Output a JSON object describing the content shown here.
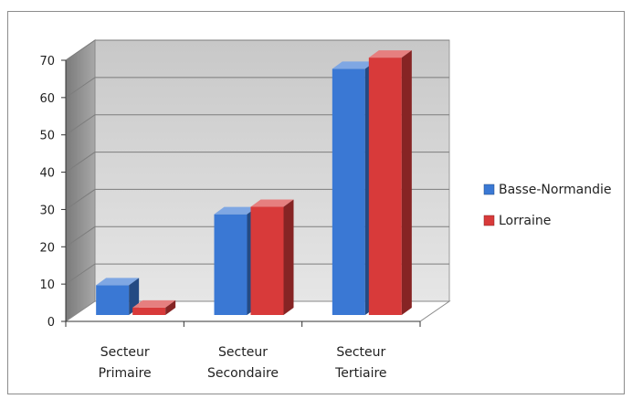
{
  "chart_data": {
    "type": "bar",
    "style": "3d-clustered-column",
    "title": "",
    "xlabel": "",
    "ylabel": "",
    "categories": [
      [
        "Secteur",
        "Primaire"
      ],
      [
        "Secteur",
        "Secondaire"
      ],
      [
        "Secteur",
        "Tertiaire"
      ]
    ],
    "series": [
      {
        "name": "Basse-Normandie",
        "color": "#3a78d4",
        "values": [
          8,
          27,
          66
        ]
      },
      {
        "name": "Lorraine",
        "color": "#d83a3a",
        "values": [
          2,
          29,
          69
        ]
      }
    ],
    "ylim": [
      0,
      70
    ],
    "yticks": [
      0,
      10,
      20,
      30,
      40,
      50,
      60,
      70
    ],
    "grid": true,
    "legend_position": "right"
  }
}
